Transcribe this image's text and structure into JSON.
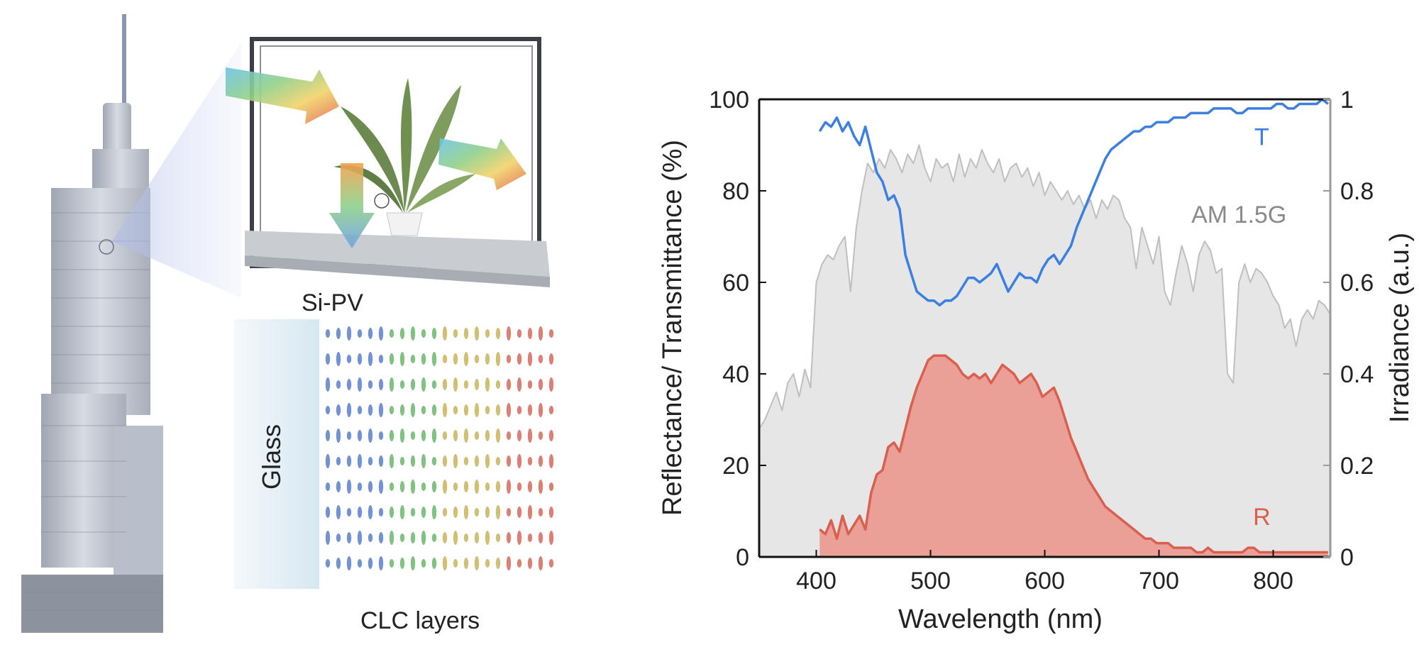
{
  "illustration": {
    "pv_label": "Si-PV",
    "glass_label": "Glass",
    "clc_label": "CLC layers",
    "layer_colors": [
      "#5b7fc9",
      "#6bb66b",
      "#c9b45a",
      "#d46a5c"
    ]
  },
  "chart_data": {
    "type": "area",
    "title": "",
    "xlabel": "Wavelength (nm)",
    "ylabel": "Reflectance/ Transmittance (%)",
    "y2label": "Irradiance (a.u.)",
    "xlim": [
      350,
      850
    ],
    "ylim": [
      0,
      100
    ],
    "y2lim": [
      0,
      1
    ],
    "xticks": [
      400,
      500,
      600,
      700,
      800
    ],
    "yticks": [
      0,
      20,
      40,
      60,
      80,
      100
    ],
    "y2ticks": [
      0,
      0.2,
      0.4,
      0.6,
      0.8,
      1
    ],
    "y2ticklabels": [
      "0",
      "0.2",
      "0.4",
      "0.6",
      "0.8",
      "1"
    ],
    "grid": false,
    "series": [
      {
        "name": "AM 1.5G",
        "axis": "right",
        "color": "#bfbfbf",
        "fill": "#e6e6e6",
        "x": [
          350,
          355,
          360,
          365,
          370,
          375,
          380,
          385,
          390,
          395,
          400,
          405,
          410,
          415,
          420,
          425,
          430,
          435,
          440,
          445,
          450,
          455,
          460,
          465,
          470,
          475,
          480,
          485,
          490,
          495,
          500,
          505,
          510,
          515,
          520,
          525,
          530,
          535,
          540,
          545,
          550,
          555,
          560,
          565,
          570,
          575,
          580,
          585,
          590,
          595,
          600,
          605,
          610,
          615,
          620,
          625,
          630,
          635,
          640,
          645,
          650,
          655,
          660,
          665,
          670,
          675,
          680,
          685,
          690,
          695,
          700,
          705,
          710,
          715,
          720,
          725,
          730,
          735,
          740,
          745,
          750,
          755,
          760,
          765,
          770,
          775,
          780,
          785,
          790,
          795,
          800,
          805,
          810,
          815,
          820,
          825,
          830,
          835,
          840,
          845,
          850
        ],
        "values": [
          0.28,
          0.3,
          0.33,
          0.36,
          0.32,
          0.38,
          0.4,
          0.35,
          0.41,
          0.37,
          0.6,
          0.64,
          0.66,
          0.65,
          0.68,
          0.7,
          0.58,
          0.72,
          0.8,
          0.86,
          0.84,
          0.87,
          0.85,
          0.89,
          0.87,
          0.84,
          0.88,
          0.86,
          0.9,
          0.85,
          0.82,
          0.87,
          0.85,
          0.86,
          0.82,
          0.88,
          0.83,
          0.87,
          0.85,
          0.89,
          0.86,
          0.84,
          0.87,
          0.82,
          0.85,
          0.86,
          0.83,
          0.85,
          0.81,
          0.84,
          0.79,
          0.82,
          0.8,
          0.78,
          0.8,
          0.77,
          0.79,
          0.76,
          0.78,
          0.74,
          0.78,
          0.76,
          0.79,
          0.78,
          0.74,
          0.72,
          0.63,
          0.72,
          0.68,
          0.64,
          0.7,
          0.58,
          0.55,
          0.62,
          0.68,
          0.64,
          0.58,
          0.66,
          0.69,
          0.67,
          0.62,
          0.63,
          0.4,
          0.38,
          0.6,
          0.64,
          0.6,
          0.63,
          0.62,
          0.6,
          0.57,
          0.55,
          0.5,
          0.52,
          0.46,
          0.52,
          0.54,
          0.52,
          0.56,
          0.55,
          0.53
        ]
      },
      {
        "name": "T",
        "axis": "left",
        "color": "#3b7fe0",
        "x": [
          403,
          408,
          413,
          418,
          423,
          428,
          433,
          438,
          443,
          448,
          453,
          458,
          463,
          468,
          473,
          478,
          483,
          488,
          493,
          498,
          503,
          508,
          513,
          518,
          523,
          528,
          533,
          538,
          543,
          548,
          553,
          558,
          563,
          568,
          573,
          578,
          583,
          588,
          593,
          598,
          603,
          608,
          613,
          618,
          623,
          628,
          633,
          638,
          643,
          648,
          653,
          658,
          663,
          668,
          673,
          678,
          683,
          688,
          693,
          698,
          703,
          708,
          713,
          718,
          723,
          728,
          733,
          738,
          743,
          748,
          753,
          758,
          763,
          768,
          773,
          778,
          783,
          788,
          793,
          798,
          803,
          808,
          813,
          818,
          823,
          828,
          833,
          838,
          843,
          848
        ],
        "values": [
          93,
          95,
          94,
          96,
          93,
          95,
          92,
          90,
          94,
          89,
          84,
          82,
          78,
          79,
          76,
          66,
          62,
          58,
          57,
          56,
          56,
          55,
          56,
          56,
          57,
          59,
          61,
          61,
          60,
          61,
          62,
          64,
          61,
          58,
          60,
          62,
          61,
          61,
          60,
          63,
          65,
          66,
          64,
          66,
          68,
          72,
          75,
          78,
          81,
          84,
          87,
          89,
          90,
          91,
          92,
          93,
          93,
          94,
          94,
          95,
          95,
          95,
          96,
          96,
          96,
          97,
          97,
          97,
          97,
          98,
          98,
          98,
          98,
          97,
          97,
          98,
          98,
          98,
          98,
          98,
          99,
          99,
          98,
          98,
          99,
          99,
          99,
          99,
          100,
          99
        ]
      },
      {
        "name": "R",
        "axis": "left",
        "color": "#d9604f",
        "fill": "#eaa096",
        "x": [
          403,
          408,
          413,
          418,
          423,
          428,
          433,
          438,
          443,
          448,
          453,
          458,
          463,
          468,
          473,
          478,
          483,
          488,
          493,
          498,
          503,
          508,
          513,
          518,
          523,
          528,
          533,
          538,
          543,
          548,
          553,
          558,
          563,
          568,
          573,
          578,
          583,
          588,
          593,
          598,
          603,
          608,
          613,
          618,
          623,
          628,
          633,
          638,
          643,
          648,
          653,
          658,
          663,
          668,
          673,
          678,
          683,
          688,
          693,
          698,
          703,
          708,
          713,
          718,
          723,
          728,
          733,
          738,
          743,
          748,
          753,
          758,
          763,
          768,
          773,
          778,
          783,
          788,
          793,
          798,
          803,
          808,
          813,
          818,
          823,
          828,
          833,
          838,
          843,
          848
        ],
        "values": [
          6,
          5,
          8,
          4,
          9,
          5,
          7,
          9,
          6,
          14,
          18,
          19,
          24,
          25,
          23,
          28,
          33,
          37,
          40,
          43,
          44,
          44,
          44,
          43,
          42,
          40,
          39,
          40,
          39,
          40,
          38,
          40,
          42,
          41,
          40,
          38,
          39,
          40,
          38,
          35,
          36,
          37,
          34,
          30,
          26,
          23,
          20,
          17,
          15,
          13,
          11,
          10,
          9,
          8,
          7,
          6,
          5,
          4,
          4,
          3,
          3,
          3,
          2,
          2,
          2,
          2,
          1,
          1,
          2,
          1,
          1,
          1,
          1,
          1,
          1,
          2,
          2,
          1,
          1,
          1,
          1,
          1,
          1,
          1,
          1,
          1,
          1,
          1,
          1,
          1
        ]
      }
    ],
    "annotations": [
      {
        "text": "T",
        "x": 790,
        "y": 90,
        "color": "#3b7fe0"
      },
      {
        "text": "AM 1.5G",
        "x": 770,
        "y": 73,
        "color": "#8a8a8a"
      },
      {
        "text": "R",
        "x": 790,
        "y": 7,
        "color": "#d9604f"
      }
    ]
  }
}
